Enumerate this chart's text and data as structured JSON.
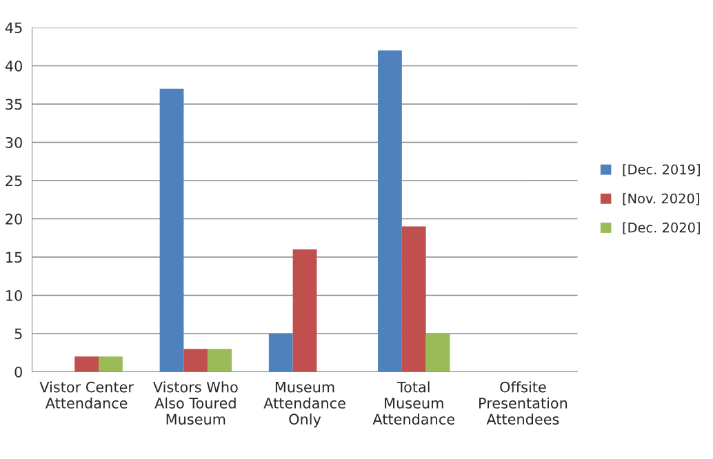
{
  "chart_data": {
    "type": "bar",
    "categories": [
      "Vistor Center\nAttendance",
      "Vistors Who\nAlso Toured\nMuseum",
      "Museum\nAttendance\nOnly",
      "Total\nMuseum\nAttendance",
      "Offsite\nPresentation\nAttendees"
    ],
    "series": [
      {
        "name": "[Dec. 2019]",
        "color": "#4f81bd",
        "values": [
          0,
          37,
          5,
          42,
          0
        ]
      },
      {
        "name": "[Nov. 2020]",
        "color": "#c0504d",
        "values": [
          2,
          3,
          16,
          19,
          0
        ]
      },
      {
        "name": "[Dec. 2020]",
        "color": "#9bbb59",
        "values": [
          2,
          3,
          0,
          5,
          0
        ]
      }
    ],
    "ylim": [
      0,
      45
    ],
    "yticks": [
      0,
      5,
      10,
      15,
      20,
      25,
      30,
      35,
      40,
      45
    ],
    "grid": "y",
    "legend": "right"
  }
}
